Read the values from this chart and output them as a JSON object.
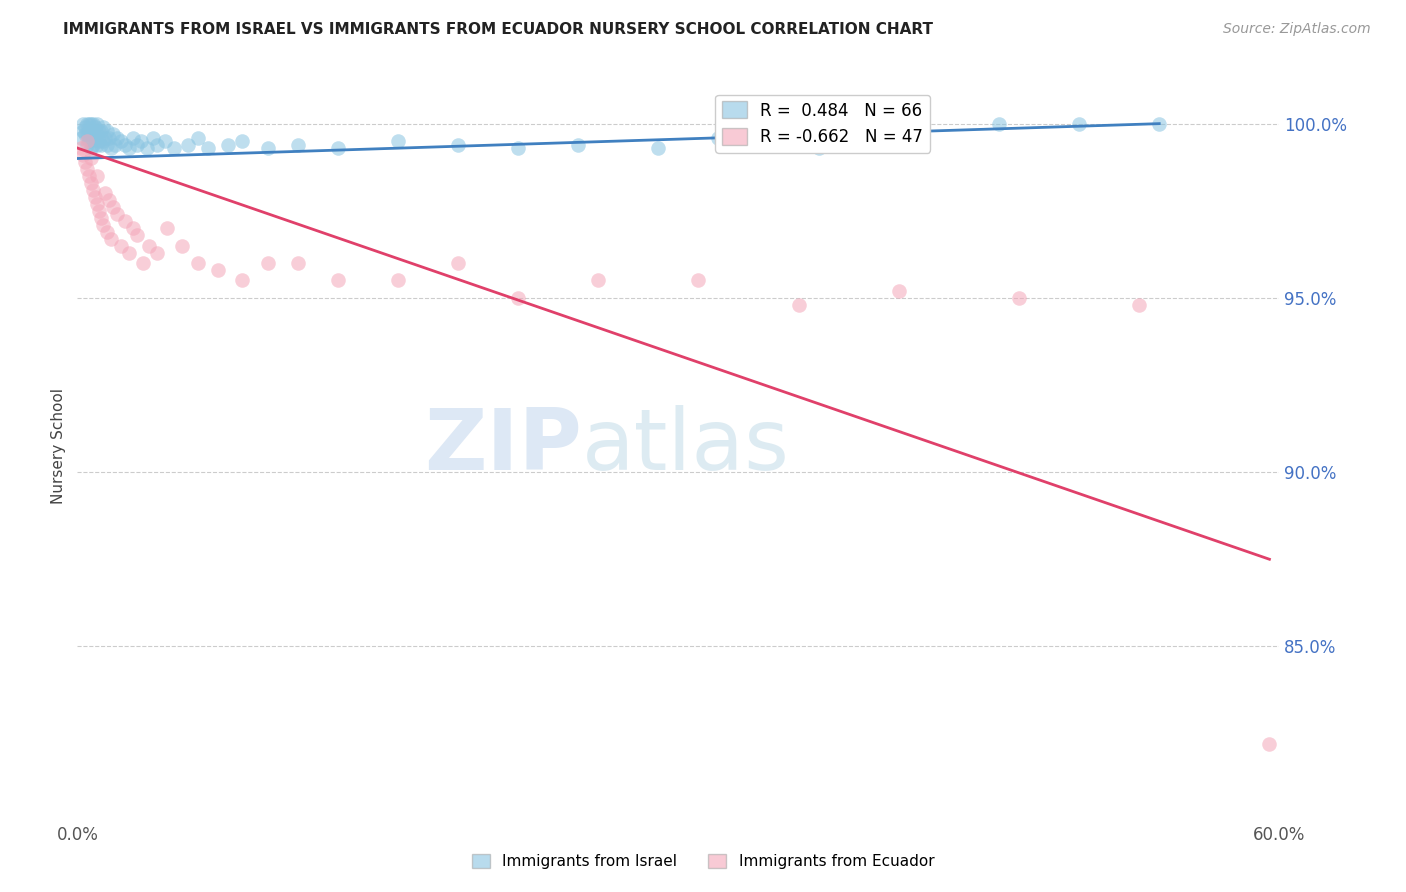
{
  "title": "IMMIGRANTS FROM ISRAEL VS IMMIGRANTS FROM ECUADOR NURSERY SCHOOL CORRELATION CHART",
  "source": "Source: ZipAtlas.com",
  "ylabel": "Nursery School",
  "xlim": [
    0.0,
    0.6
  ],
  "ylim": [
    0.8,
    1.015
  ],
  "yticks_right": [
    1.0,
    0.95,
    0.9,
    0.85
  ],
  "yticklabels_right": [
    "100.0%",
    "95.0%",
    "90.0%",
    "85.0%"
  ],
  "israel_R": 0.484,
  "israel_N": 66,
  "ecuador_R": -0.662,
  "ecuador_N": 47,
  "israel_color": "#89c4e1",
  "ecuador_color": "#f4a7b9",
  "israel_line_color": "#4080c0",
  "ecuador_line_color": "#e0406a",
  "watermark_color": "#dde8f5",
  "background_color": "#ffffff",
  "grid_color": "#cccccc",
  "israel_scatter_x": [
    0.002,
    0.003,
    0.003,
    0.004,
    0.004,
    0.005,
    0.005,
    0.005,
    0.006,
    0.006,
    0.006,
    0.007,
    0.007,
    0.007,
    0.008,
    0.008,
    0.008,
    0.009,
    0.009,
    0.01,
    0.01,
    0.01,
    0.011,
    0.011,
    0.012,
    0.012,
    0.013,
    0.013,
    0.014,
    0.015,
    0.015,
    0.016,
    0.017,
    0.018,
    0.019,
    0.02,
    0.022,
    0.024,
    0.026,
    0.028,
    0.03,
    0.032,
    0.035,
    0.038,
    0.04,
    0.044,
    0.048,
    0.055,
    0.06,
    0.065,
    0.075,
    0.082,
    0.095,
    0.11,
    0.13,
    0.16,
    0.19,
    0.22,
    0.25,
    0.29,
    0.32,
    0.37,
    0.42,
    0.46,
    0.5,
    0.54
  ],
  "israel_scatter_y": [
    0.996,
    0.998,
    1.0,
    0.997,
    0.999,
    0.994,
    0.997,
    1.0,
    0.995,
    0.998,
    1.0,
    0.993,
    0.997,
    1.0,
    0.994,
    0.998,
    1.0,
    0.996,
    0.999,
    0.994,
    0.997,
    1.0,
    0.995,
    0.998,
    0.994,
    0.998,
    0.995,
    0.999,
    0.996,
    0.994,
    0.998,
    0.996,
    0.993,
    0.997,
    0.994,
    0.996,
    0.995,
    0.994,
    0.993,
    0.996,
    0.994,
    0.995,
    0.993,
    0.996,
    0.994,
    0.995,
    0.993,
    0.994,
    0.996,
    0.993,
    0.994,
    0.995,
    0.993,
    0.994,
    0.993,
    0.995,
    0.994,
    0.993,
    0.994,
    0.993,
    0.996,
    0.993,
    1.0,
    1.0,
    1.0,
    1.0
  ],
  "ecuador_scatter_x": [
    0.002,
    0.003,
    0.004,
    0.005,
    0.005,
    0.006,
    0.007,
    0.007,
    0.008,
    0.009,
    0.01,
    0.01,
    0.011,
    0.012,
    0.013,
    0.014,
    0.015,
    0.016,
    0.017,
    0.018,
    0.02,
    0.022,
    0.024,
    0.026,
    0.028,
    0.03,
    0.033,
    0.036,
    0.04,
    0.045,
    0.052,
    0.06,
    0.07,
    0.082,
    0.095,
    0.11,
    0.13,
    0.16,
    0.19,
    0.22,
    0.26,
    0.31,
    0.36,
    0.41,
    0.47,
    0.53,
    0.595
  ],
  "ecuador_scatter_y": [
    0.993,
    0.991,
    0.989,
    0.987,
    0.995,
    0.985,
    0.983,
    0.99,
    0.981,
    0.979,
    0.977,
    0.985,
    0.975,
    0.973,
    0.971,
    0.98,
    0.969,
    0.978,
    0.967,
    0.976,
    0.974,
    0.965,
    0.972,
    0.963,
    0.97,
    0.968,
    0.96,
    0.965,
    0.963,
    0.97,
    0.965,
    0.96,
    0.958,
    0.955,
    0.96,
    0.96,
    0.955,
    0.955,
    0.96,
    0.95,
    0.955,
    0.955,
    0.948,
    0.952,
    0.95,
    0.948,
    0.822
  ],
  "israel_line_x": [
    0.0,
    0.54
  ],
  "israel_line_y": [
    0.99,
    1.0
  ],
  "ecuador_line_x": [
    0.0,
    0.595
  ],
  "ecuador_line_y": [
    0.993,
    0.875
  ]
}
